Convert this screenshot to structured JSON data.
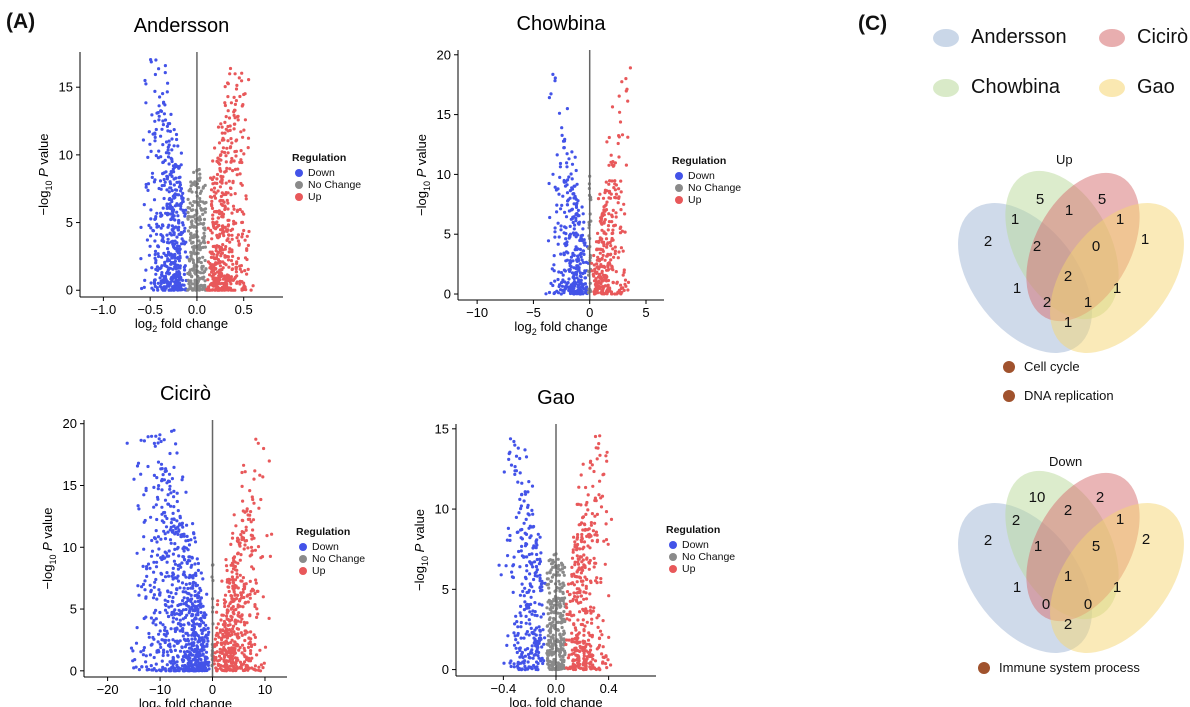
{
  "panel_labels": {
    "a": "(A)",
    "c": "(C)"
  },
  "legend": {
    "title": "Regulation",
    "items": [
      {
        "label": "Down",
        "color": "#4353e8"
      },
      {
        "label": "No Change",
        "color": "#8a8a8a"
      },
      {
        "label": "Up",
        "color": "#e8585a"
      }
    ]
  },
  "chart_data": [
    {
      "type": "scatter",
      "subtype": "volcano",
      "title": "Andersson",
      "xlabel": "log2 fold change",
      "ylabel": "−log10 P value",
      "xlim": [
        -1.25,
        0.92
      ],
      "ylim": [
        -0.5,
        17.6
      ],
      "xticks": [
        -1.0,
        -0.5,
        0.0,
        0.5
      ],
      "xtick_labels": [
        "−1.0",
        "−0.5",
        "0.0",
        "0.5"
      ],
      "yticks": [
        0,
        5,
        10,
        15
      ],
      "threshold": 0.1,
      "xspread": 0.42,
      "max_y": 17.1,
      "series": [
        {
          "name": "Down",
          "approx_count": 2600
        },
        {
          "name": "No Change",
          "approx_count": 1200
        },
        {
          "name": "Up",
          "approx_count": 2500
        }
      ]
    },
    {
      "type": "scatter",
      "subtype": "volcano",
      "title": "Chowbina",
      "xlabel": "log2 fold change",
      "ylabel": "−log10 P value",
      "xlim": [
        -11.7,
        6.6
      ],
      "ylim": [
        -0.5,
        20.4
      ],
      "xticks": [
        -10,
        -5,
        0,
        5
      ],
      "xtick_labels": [
        "−10",
        "−5",
        "0",
        "5"
      ],
      "yticks": [
        0,
        5,
        10,
        15,
        20
      ],
      "threshold": 0.1,
      "xspread": 3.2,
      "max_y": 19.0,
      "series": [
        {
          "name": "Down",
          "approx_count": 1700
        },
        {
          "name": "No Change",
          "approx_count": 150
        },
        {
          "name": "Up",
          "approx_count": 1500
        }
      ]
    },
    {
      "type": "scatter",
      "subtype": "volcano",
      "title": "Cicirò",
      "xlabel": "log2 fold change",
      "ylabel": "−log10 P value",
      "xlim": [
        -24.5,
        14.2
      ],
      "ylim": [
        -0.5,
        20.3
      ],
      "xticks": [
        -20,
        -10,
        0,
        10
      ],
      "xtick_labels": [
        "−20",
        "−10",
        "0",
        "10"
      ],
      "yticks": [
        0,
        5,
        10,
        15,
        20
      ],
      "threshold": 0.1,
      "xspread": 9.0,
      "max_y": 19.5,
      "series": [
        {
          "name": "Down",
          "approx_count": 4000
        },
        {
          "name": "No Change",
          "approx_count": 100
        },
        {
          "name": "Up",
          "approx_count": 2500
        }
      ]
    },
    {
      "type": "scatter",
      "subtype": "volcano",
      "title": "Gao",
      "xlabel": "log2 fold change",
      "ylabel": "−log10 P value",
      "xlim": [
        -0.76,
        0.76
      ],
      "ylim": [
        -0.4,
        15.3
      ],
      "xticks": [
        -0.4,
        0.0,
        0.4
      ],
      "xtick_labels": [
        "−0.4",
        "0.0",
        "0.4"
      ],
      "yticks": [
        0,
        5,
        10,
        15
      ],
      "threshold": 0.07,
      "xspread": 0.3,
      "max_y": 14.6,
      "series": [
        {
          "name": "Down",
          "approx_count": 1500
        },
        {
          "name": "No Change",
          "approx_count": 1400
        },
        {
          "name": "Up",
          "approx_count": 2000
        }
      ]
    }
  ],
  "venn": {
    "sets": [
      {
        "name": "Andersson",
        "color": "#9fb6d6"
      },
      {
        "name": "Chowbina",
        "color": "#b9d99a"
      },
      {
        "name": "Cicirò",
        "color": "#d56b6e"
      },
      {
        "name": "Gao",
        "color": "#f6d571"
      }
    ],
    "diagrams": [
      {
        "title": "Up",
        "counts": {
          "A": "2",
          "B": "5",
          "C": "5",
          "D": "1",
          "AB": "1",
          "BC": "1",
          "CD": "1",
          "ABC": "2",
          "BCD": "0",
          "ABCD": "2",
          "AC": "1",
          "BD": "1",
          "ACD": "2",
          "ABD": "1",
          "AD": "1"
        },
        "go_terms": [
          "Cell cycle",
          "DNA replication"
        ]
      },
      {
        "title": "Down",
        "counts": {
          "A": "2",
          "B": "10",
          "C": "2",
          "D": "2",
          "AB": "2",
          "BC": "2",
          "CD": "1",
          "ABC": "1",
          "BCD": "5",
          "ABCD": "1",
          "AC": "1",
          "BD": "1",
          "ACD": "0",
          "ABD": "0",
          "AD": "2"
        },
        "go_terms": [
          "Immune system process"
        ]
      }
    ]
  }
}
